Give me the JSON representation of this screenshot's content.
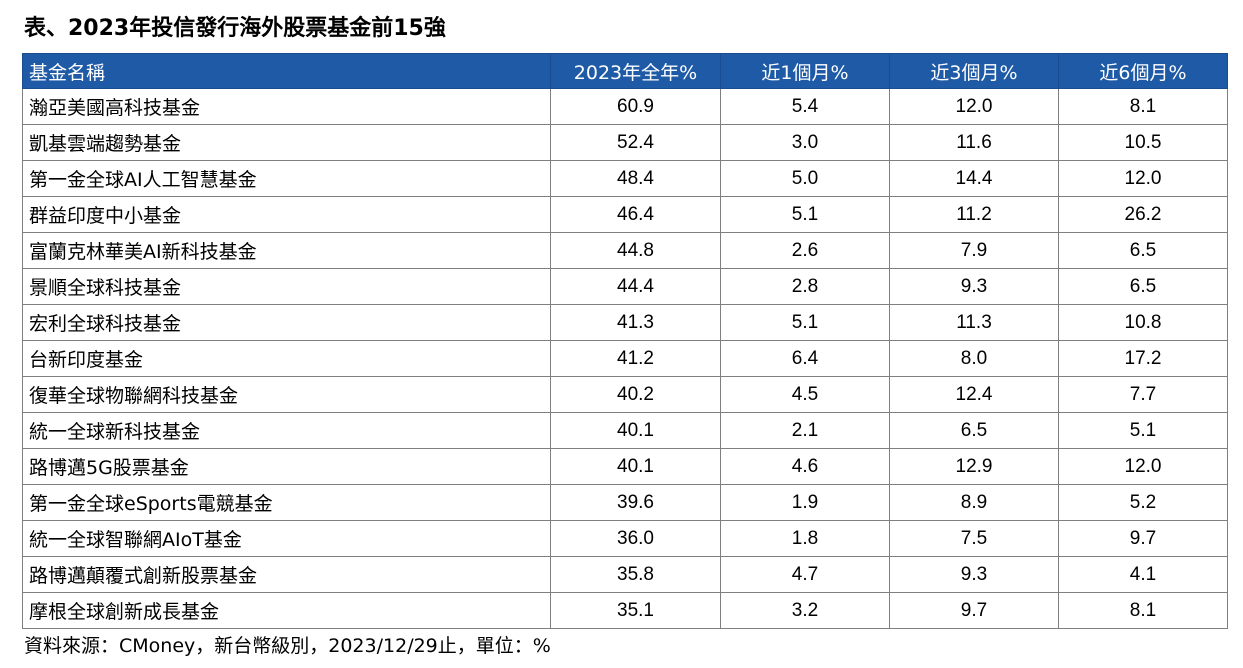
{
  "title": "表、2023年投信發行海外股票基金前15強",
  "table": {
    "headers": [
      "基金名稱",
      "2023年全年%",
      "近1個月%",
      "近3個月%",
      "近6個月%"
    ],
    "rows": [
      [
        "瀚亞美國高科技基金",
        "60.9",
        "5.4",
        "12.0",
        "8.1"
      ],
      [
        "凱基雲端趨勢基金",
        "52.4",
        "3.0",
        "11.6",
        "10.5"
      ],
      [
        "第一金全球AI人工智慧基金",
        "48.4",
        "5.0",
        "14.4",
        "12.0"
      ],
      [
        "群益印度中小基金",
        "46.4",
        "5.1",
        "11.2",
        "26.2"
      ],
      [
        "富蘭克林華美AI新科技基金",
        "44.8",
        "2.6",
        "7.9",
        "6.5"
      ],
      [
        "景順全球科技基金",
        "44.4",
        "2.8",
        "9.3",
        "6.5"
      ],
      [
        "宏利全球科技基金",
        "41.3",
        "5.1",
        "11.3",
        "10.8"
      ],
      [
        "台新印度基金",
        "41.2",
        "6.4",
        "8.0",
        "17.2"
      ],
      [
        "復華全球物聯網科技基金",
        "40.2",
        "4.5",
        "12.4",
        "7.7"
      ],
      [
        "統一全球新科技基金",
        "40.1",
        "2.1",
        "6.5",
        "5.1"
      ],
      [
        "路博邁5G股票基金",
        "40.1",
        "4.6",
        "12.9",
        "12.0"
      ],
      [
        "第一金全球eSports電競基金",
        "39.6",
        "1.9",
        "8.9",
        "5.2"
      ],
      [
        "統一全球智聯網AIoT基金",
        "36.0",
        "1.8",
        "7.5",
        "9.7"
      ],
      [
        "路博邁顛覆式創新股票基金",
        "35.8",
        "4.7",
        "9.3",
        "4.1"
      ],
      [
        "摩根全球創新成長基金",
        "35.1",
        "3.2",
        "9.7",
        "8.1"
      ]
    ]
  },
  "source": "資料來源：CMoney，新台幣級別，2023/12/29止，單位：%",
  "colors": {
    "header_background": "#1f5aa6",
    "header_text": "#ffffff",
    "grid_line": "#7f7f7f"
  }
}
